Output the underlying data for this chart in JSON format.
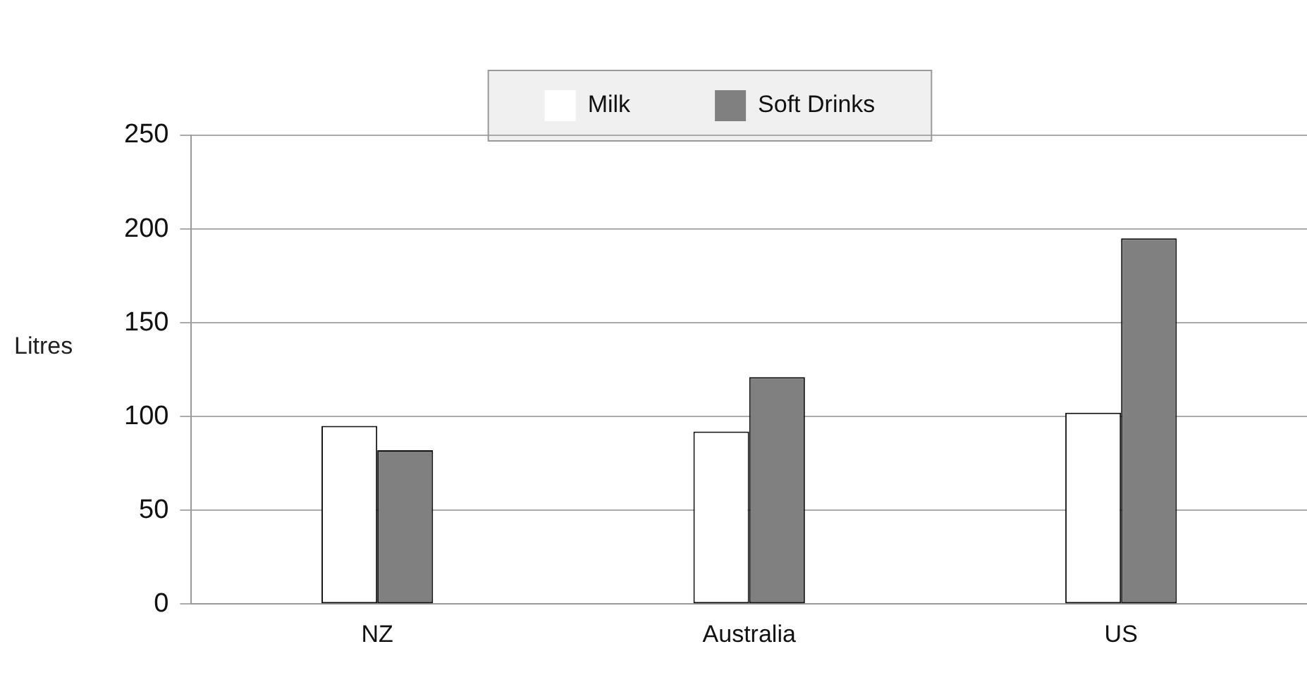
{
  "chart_data": {
    "type": "bar",
    "ylabel": "Litres",
    "categories": [
      "NZ",
      "Australia",
      "US"
    ],
    "series": [
      {
        "name": "Milk",
        "color": "#ffffff",
        "values": [
          95,
          92,
          102
        ]
      },
      {
        "name": "Soft Drinks",
        "color": "#808080",
        "values": [
          82,
          121,
          195
        ]
      }
    ],
    "ylim": [
      0,
      250
    ],
    "yticks": [
      0,
      50,
      100,
      150,
      200,
      250
    ],
    "grid": "y",
    "legend": "top"
  }
}
